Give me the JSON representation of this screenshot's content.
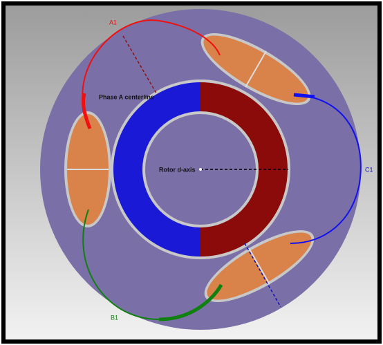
{
  "labels": {
    "a1": "A1",
    "phase_a_centerline": "Phase A centerline",
    "rotor_d_axis": "Rotor d-axis",
    "c1": "C1",
    "b1": "B1"
  }
}
